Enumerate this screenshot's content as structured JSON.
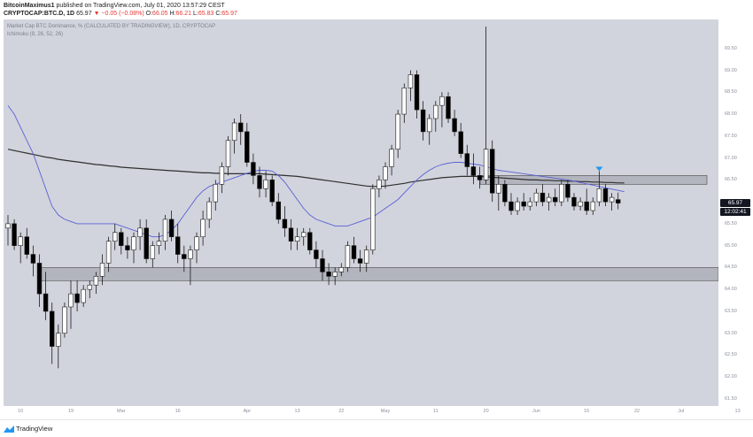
{
  "header": {
    "publisher": "BitcoinMaximus1",
    "published_text": "published on TradingView.com, July 01, 2020 13:57:29 CEST",
    "symbol": "CRYPTOCAP:BTC.D, 1D",
    "last": "65.97",
    "change": "▼ −0.05 (−0.08%)",
    "ohlc": {
      "o_label": "O:",
      "o": "66.05",
      "h_label": "H:",
      "h": "66.21",
      "l_label": "L:",
      "l": "65.83",
      "c_label": "C:",
      "c": "65.97"
    }
  },
  "legend": {
    "main": "Market Cap BTC Dominance, % (CALCULATED BY TRADINGVIEW), 1D, CRYPTOCAP",
    "indicator": "Ichimoku (9, 26, 52, 26)"
  },
  "price_tags": {
    "price": "65.97",
    "countdown": "12:02:41"
  },
  "footer": {
    "brand": "TradingView"
  },
  "colors": {
    "plot_bg": "#d1d4dc",
    "bull_body": "#ffffff",
    "bear_body": "#000000",
    "wick": "#1b1b1b",
    "baseline": "#2f2f2f",
    "conversion": "#5b5fd6",
    "zone_fill": "#b2b5be",
    "zone_border": "#4a4a4a",
    "marker": "#2196f3",
    "down": "#e53935"
  },
  "chart_data": {
    "type": "candlestick",
    "title": "Market Cap BTC Dominance, % (CALCULATED BY TRADINGVIEW), 1D, CRYPTOCAP",
    "xlabel": "",
    "ylabel": "",
    "ylim": [
      61.5,
      70.0
    ],
    "y_ticks": [
      "69.50",
      "69.00",
      "68.50",
      "68.00",
      "67.50",
      "67.00",
      "66.50",
      "66.00",
      "65.50",
      "65.00",
      "64.50",
      "64.00",
      "63.50",
      "63.00",
      "62.50",
      "62.00",
      "61.50"
    ],
    "x_ticks": [
      "10",
      "19",
      "Mar",
      "16",
      "Apr",
      "13",
      "22",
      "May",
      "11",
      "20",
      "Jun",
      "15",
      "22",
      "Jul",
      "13"
    ],
    "grid": false,
    "candles_ohlc": [
      [
        65.4,
        65.7,
        65.0,
        65.5
      ],
      [
        65.5,
        65.6,
        64.9,
        65.0
      ],
      [
        65.0,
        65.3,
        64.6,
        65.2
      ],
      [
        65.2,
        65.4,
        64.7,
        64.8
      ],
      [
        64.8,
        65.0,
        64.3,
        64.6
      ],
      [
        64.6,
        64.8,
        63.6,
        63.9
      ],
      [
        63.9,
        64.4,
        63.3,
        63.5
      ],
      [
        63.5,
        63.7,
        62.3,
        62.7
      ],
      [
        62.7,
        63.2,
        62.2,
        63.0
      ],
      [
        63.0,
        63.7,
        62.9,
        63.6
      ],
      [
        63.6,
        64.2,
        63.1,
        63.9
      ],
      [
        63.9,
        64.2,
        63.5,
        63.7
      ],
      [
        63.7,
        64.1,
        63.6,
        64.0
      ],
      [
        64.0,
        64.2,
        63.8,
        64.1
      ],
      [
        64.1,
        64.4,
        63.9,
        64.3
      ],
      [
        64.3,
        64.8,
        64.1,
        64.6
      ],
      [
        64.6,
        65.2,
        64.4,
        65.1
      ],
      [
        65.1,
        65.5,
        64.9,
        65.3
      ],
      [
        65.3,
        65.4,
        64.8,
        65.0
      ],
      [
        65.0,
        65.2,
        64.7,
        64.9
      ],
      [
        64.9,
        65.3,
        64.6,
        65.2
      ],
      [
        65.2,
        65.6,
        64.9,
        65.4
      ],
      [
        65.4,
        65.6,
        64.6,
        64.7
      ],
      [
        64.7,
        65.1,
        64.5,
        65.0
      ],
      [
        65.0,
        65.3,
        64.8,
        65.1
      ],
      [
        65.1,
        65.7,
        64.9,
        65.6
      ],
      [
        65.6,
        65.8,
        65.1,
        65.2
      ],
      [
        65.2,
        65.5,
        64.6,
        64.8
      ],
      [
        64.8,
        65.0,
        64.4,
        64.7
      ],
      [
        64.7,
        65.0,
        64.1,
        64.9
      ],
      [
        64.9,
        65.3,
        64.6,
        65.2
      ],
      [
        65.2,
        65.8,
        65.0,
        65.6
      ],
      [
        65.6,
        66.1,
        65.4,
        66.0
      ],
      [
        66.0,
        66.5,
        65.8,
        66.4
      ],
      [
        66.4,
        66.9,
        66.2,
        66.8
      ],
      [
        66.8,
        67.5,
        66.6,
        67.4
      ],
      [
        67.4,
        67.9,
        67.1,
        67.8
      ],
      [
        67.8,
        68.0,
        67.3,
        67.6
      ],
      [
        67.6,
        67.8,
        66.8,
        66.9
      ],
      [
        66.9,
        67.1,
        66.4,
        66.6
      ],
      [
        66.6,
        66.8,
        66.1,
        66.3
      ],
      [
        66.3,
        66.7,
        66.1,
        66.5
      ],
      [
        66.5,
        66.6,
        65.9,
        66.0
      ],
      [
        66.0,
        66.2,
        65.5,
        65.6
      ],
      [
        65.6,
        65.9,
        65.2,
        65.4
      ],
      [
        65.4,
        65.6,
        64.9,
        65.1
      ],
      [
        65.1,
        65.4,
        64.9,
        65.2
      ],
      [
        65.2,
        65.4,
        65.0,
        65.3
      ],
      [
        65.3,
        65.4,
        64.8,
        64.9
      ],
      [
        64.9,
        65.1,
        64.5,
        64.7
      ],
      [
        64.7,
        64.9,
        64.2,
        64.4
      ],
      [
        64.4,
        64.6,
        64.1,
        64.3
      ],
      [
        64.3,
        64.5,
        64.1,
        64.4
      ],
      [
        64.4,
        64.6,
        64.3,
        64.5
      ],
      [
        64.5,
        65.1,
        64.4,
        65.0
      ],
      [
        65.0,
        65.2,
        64.6,
        64.7
      ],
      [
        64.7,
        64.9,
        64.4,
        64.6
      ],
      [
        64.6,
        65.0,
        64.4,
        64.9
      ],
      [
        64.9,
        66.4,
        64.8,
        66.3
      ],
      [
        66.3,
        66.6,
        66.1,
        66.5
      ],
      [
        66.5,
        66.9,
        66.3,
        66.8
      ],
      [
        66.8,
        67.3,
        66.6,
        67.2
      ],
      [
        67.2,
        68.1,
        67.0,
        68.0
      ],
      [
        68.0,
        68.7,
        67.8,
        68.6
      ],
      [
        68.6,
        69.0,
        68.3,
        68.9
      ],
      [
        68.9,
        69.0,
        67.9,
        68.1
      ],
      [
        68.1,
        68.3,
        67.4,
        67.6
      ],
      [
        67.6,
        68.0,
        67.3,
        67.9
      ],
      [
        67.9,
        68.3,
        67.6,
        68.2
      ],
      [
        68.2,
        68.5,
        67.7,
        68.4
      ],
      [
        68.4,
        68.5,
        67.8,
        67.9
      ],
      [
        67.9,
        68.1,
        67.5,
        67.6
      ],
      [
        67.6,
        67.8,
        67.0,
        67.1
      ],
      [
        67.1,
        67.3,
        66.6,
        66.8
      ],
      [
        66.8,
        67.1,
        66.4,
        66.6
      ],
      [
        66.6,
        66.8,
        66.3,
        66.5
      ],
      [
        66.5,
        70.0,
        66.4,
        67.2
      ],
      [
        67.2,
        67.4,
        66.0,
        66.2
      ],
      [
        66.2,
        66.6,
        65.8,
        66.4
      ],
      [
        66.4,
        66.5,
        65.9,
        66.0
      ],
      [
        66.0,
        66.2,
        65.7,
        65.8
      ],
      [
        65.8,
        66.1,
        65.7,
        66.0
      ],
      [
        66.0,
        66.2,
        65.8,
        65.9
      ],
      [
        65.9,
        66.1,
        65.8,
        66.0
      ],
      [
        66.0,
        66.3,
        65.9,
        66.2
      ],
      [
        66.2,
        66.4,
        65.9,
        66.0
      ],
      [
        66.0,
        66.2,
        65.8,
        66.1
      ],
      [
        66.1,
        66.3,
        65.9,
        66.0
      ],
      [
        66.0,
        66.5,
        65.9,
        66.4
      ],
      [
        66.4,
        66.5,
        66.0,
        66.1
      ],
      [
        66.1,
        66.2,
        65.8,
        65.9
      ],
      [
        65.9,
        66.1,
        65.8,
        66.0
      ],
      [
        66.0,
        66.3,
        65.7,
        65.8
      ],
      [
        65.8,
        66.1,
        65.7,
        66.0
      ],
      [
        66.0,
        66.7,
        65.9,
        66.3
      ],
      [
        66.3,
        66.4,
        65.9,
        66.0
      ],
      [
        66.0,
        66.2,
        65.8,
        66.1
      ],
      [
        66.05,
        66.21,
        65.83,
        65.97
      ]
    ],
    "baseline_series": [
      67.2,
      67.17,
      67.14,
      67.11,
      67.08,
      67.05,
      67.02,
      67.0,
      66.97,
      66.95,
      66.93,
      66.91,
      66.89,
      66.87,
      66.85,
      66.84,
      66.82,
      66.81,
      66.79,
      66.78,
      66.77,
      66.76,
      66.75,
      66.74,
      66.73,
      66.72,
      66.71,
      66.7,
      66.69,
      66.68,
      66.67,
      66.66,
      66.66,
      66.65,
      66.65,
      66.64,
      66.64,
      66.64,
      66.64,
      66.64,
      66.64,
      66.63,
      66.62,
      66.61,
      66.6,
      66.59,
      66.58,
      66.56,
      66.54,
      66.52,
      66.5,
      66.48,
      66.46,
      66.44,
      66.42,
      66.4,
      66.38,
      66.36,
      66.35,
      66.35,
      66.36,
      66.38,
      66.4,
      66.42,
      66.45,
      66.47,
      66.49,
      66.51,
      66.53,
      66.55,
      66.56,
      66.57,
      66.58,
      66.58,
      66.58,
      66.58,
      66.57,
      66.56,
      66.55,
      66.54,
      66.53,
      66.52,
      66.51,
      66.5,
      66.5,
      66.49,
      66.49,
      66.48,
      66.48,
      66.47,
      66.47,
      66.46,
      66.46,
      66.45,
      66.45,
      66.44,
      66.44,
      66.43,
      66.43
    ],
    "conversion_series": [
      68.2,
      68.0,
      67.7,
      67.4,
      67.1,
      66.7,
      66.3,
      65.9,
      65.7,
      65.6,
      65.55,
      65.5,
      65.5,
      65.5,
      65.5,
      65.5,
      65.5,
      65.5,
      65.45,
      65.4,
      65.35,
      65.3,
      65.25,
      65.2,
      65.2,
      65.25,
      65.35,
      65.5,
      65.7,
      65.9,
      66.1,
      66.25,
      66.35,
      66.4,
      66.45,
      66.5,
      66.55,
      66.6,
      66.65,
      66.7,
      66.72,
      66.72,
      66.7,
      66.6,
      66.45,
      66.25,
      66.05,
      65.85,
      65.7,
      65.6,
      65.55,
      65.5,
      65.45,
      65.45,
      65.45,
      65.5,
      65.55,
      65.6,
      65.65,
      65.75,
      65.85,
      65.95,
      66.05,
      66.2,
      66.35,
      66.5,
      66.62,
      66.72,
      66.8,
      66.85,
      66.88,
      66.9,
      66.9,
      66.88,
      66.86,
      66.84,
      66.8,
      66.76,
      66.72,
      66.7,
      66.68,
      66.66,
      66.64,
      66.62,
      66.6,
      66.58,
      66.56,
      66.54,
      66.52,
      66.5,
      66.47,
      66.44,
      66.41,
      66.38,
      66.35,
      66.32,
      66.29,
      66.26,
      66.23
    ],
    "support_zone": [
      64.2,
      64.5
    ],
    "resistance_zone": [
      66.4,
      66.6
    ],
    "marker": {
      "type": "down-arrow",
      "value": 66.7
    }
  }
}
